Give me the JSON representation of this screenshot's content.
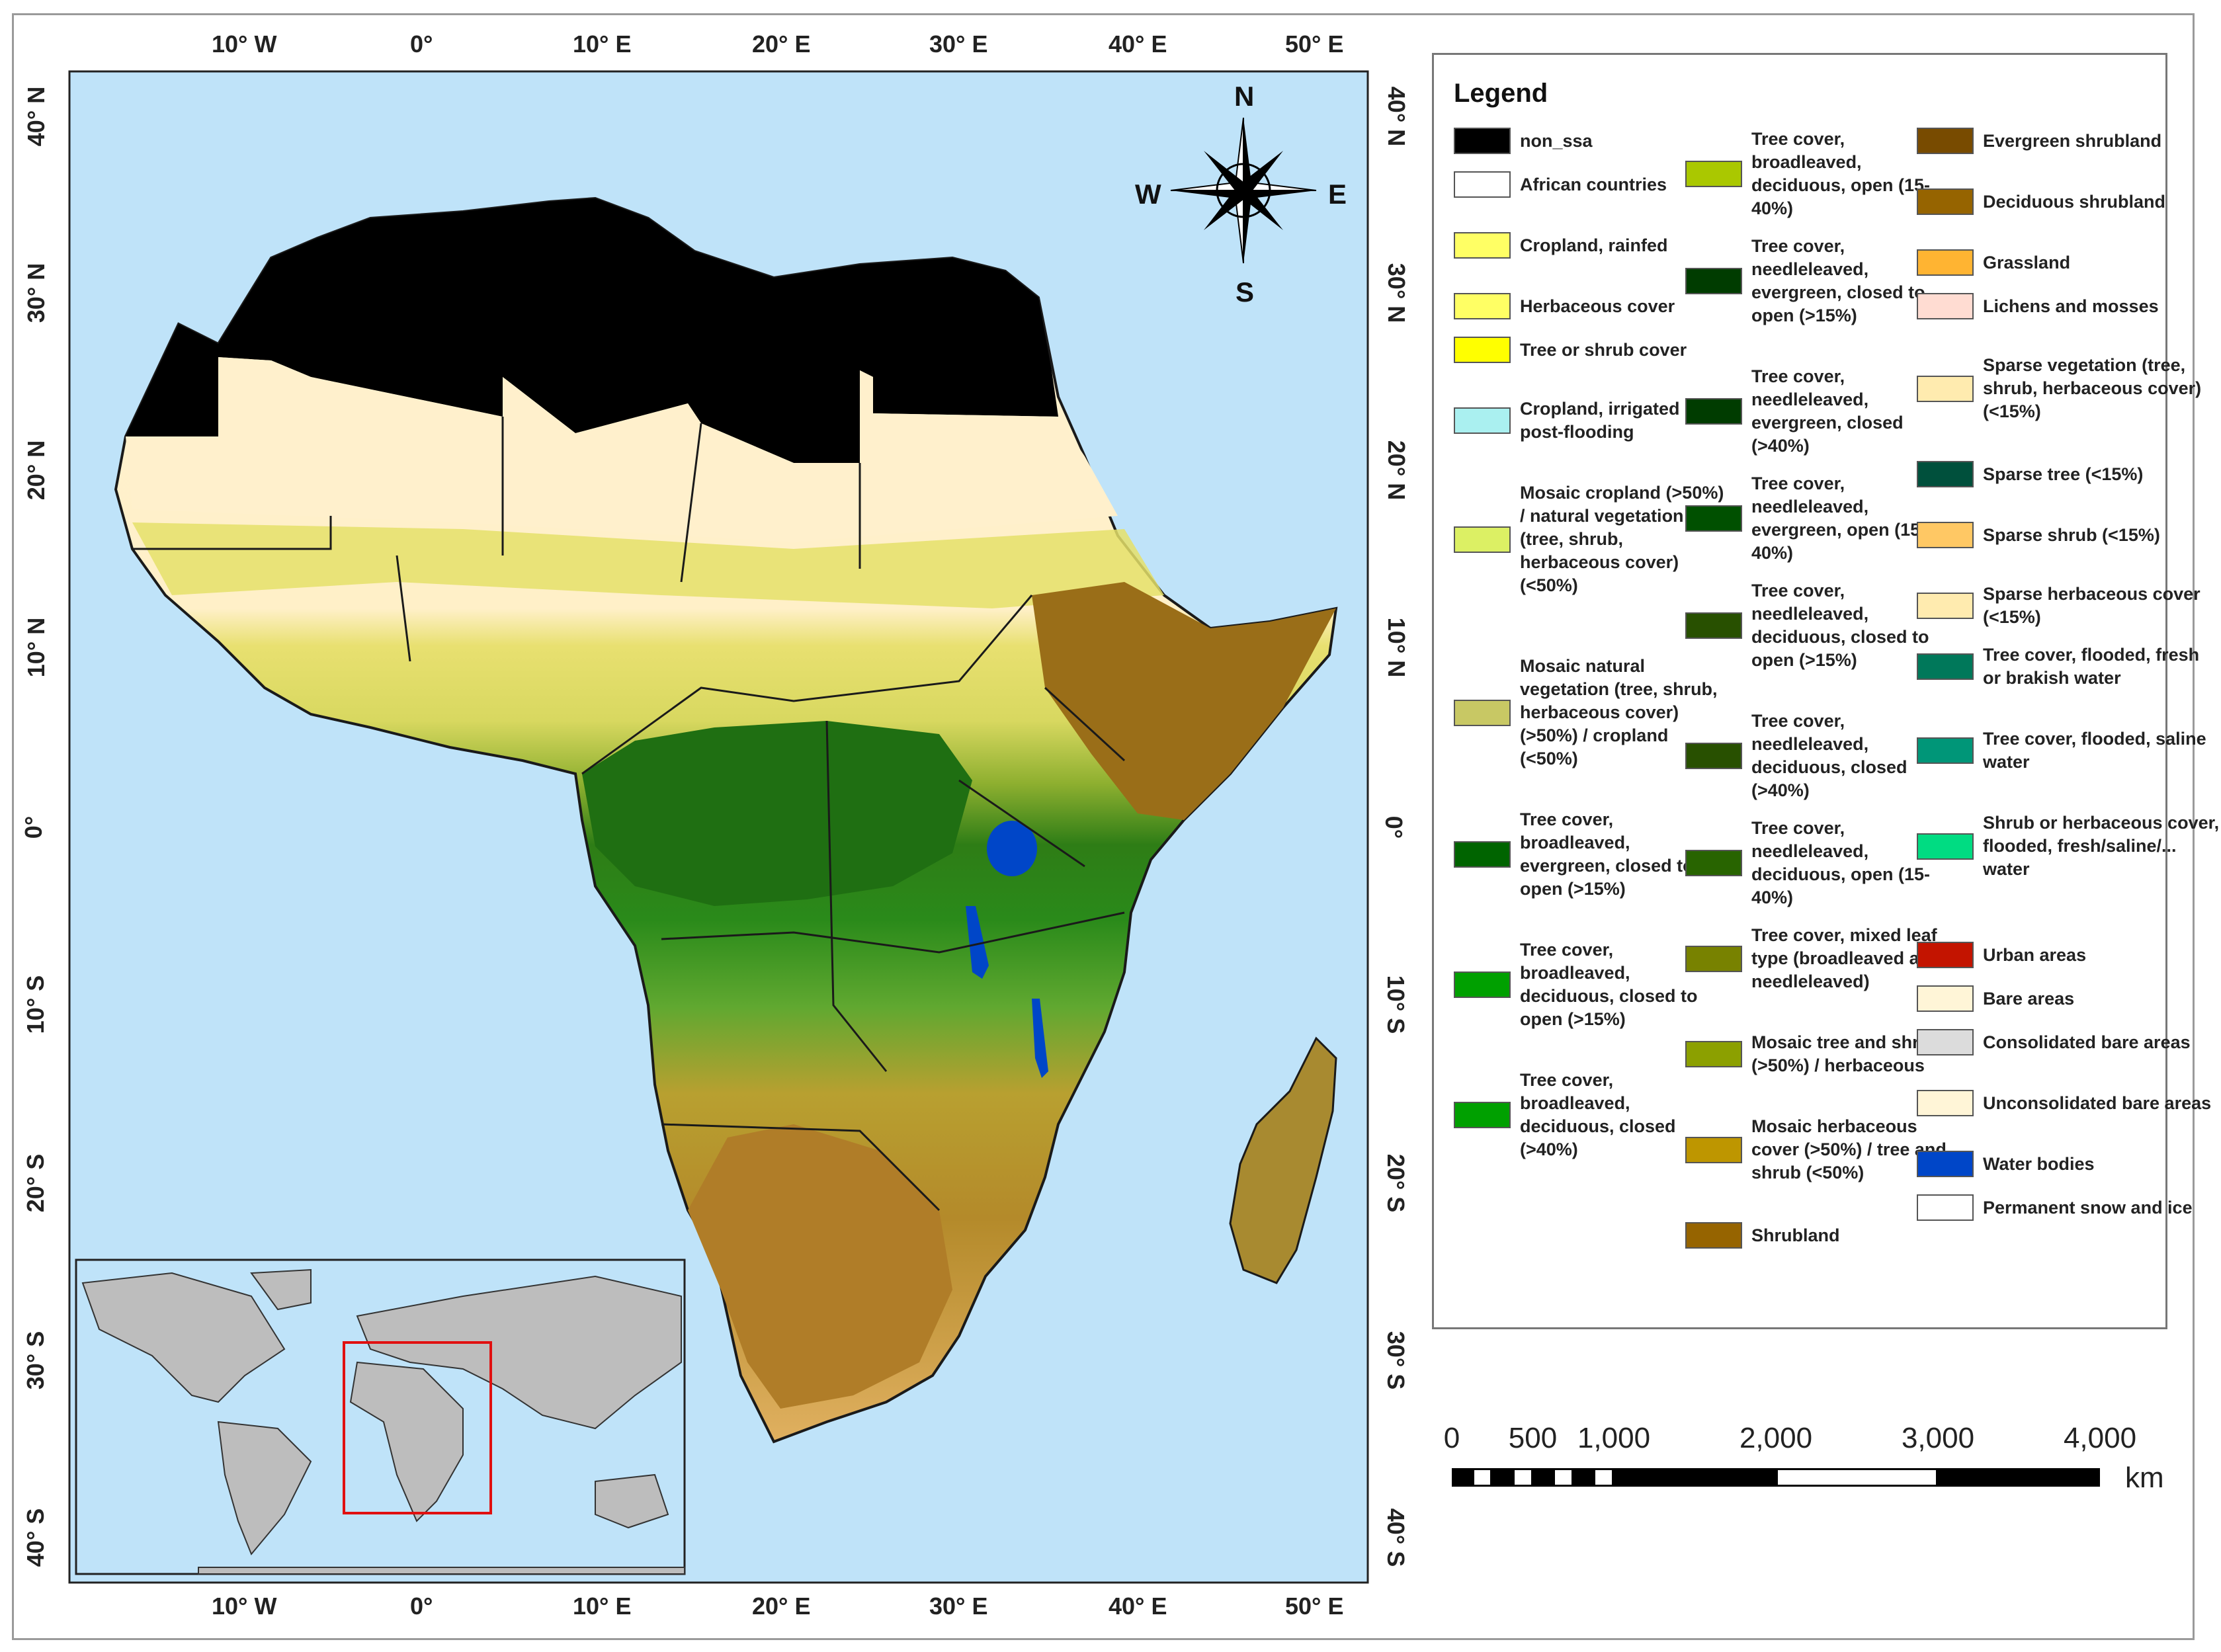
{
  "map": {
    "lon_labels": [
      "10° W",
      "0°",
      "10° E",
      "20° E",
      "30° E",
      "40° E",
      "50° E"
    ],
    "lat_labels": [
      "40° N",
      "30° N",
      "20° N",
      "10° N",
      "0°",
      "10° S",
      "20° S",
      "30° S",
      "40° S"
    ],
    "compass": {
      "n": "N",
      "s": "S",
      "e": "E",
      "w": "W"
    },
    "colors": {
      "ocean": "#bfe3f9",
      "non_ssa": "#000000",
      "border": "#1a1a1a",
      "inset_box": "#e01010",
      "inset_land": "#bdbdbd"
    }
  },
  "legend": {
    "title": "Legend",
    "items": [
      {
        "label": "non_ssa",
        "color": "#000000"
      },
      {
        "label": "African countries",
        "color": "#ffffff"
      },
      {
        "label": "Cropland, rainfed",
        "color": "#ffff64"
      },
      {
        "label": "Herbaceous cover",
        "color": "#ffff64"
      },
      {
        "label": "Tree or shrub cover",
        "color": "#ffff00"
      },
      {
        "label": "Cropland, irrigated or post-flooding",
        "color": "#aaf0f0"
      },
      {
        "label": "Mosaic cropland (>50%) / natural vegetation (tree, shrub, herbaceous cover) (<50%)",
        "color": "#dcf064"
      },
      {
        "label": "Mosaic natural vegetation (tree, shrub, herbaceous cover) (>50%) / cropland (<50%)",
        "color": "#c8c864"
      },
      {
        "label": "Tree cover, broadleaved, evergreen, closed to open (>15%)",
        "color": "#006400"
      },
      {
        "label": "Tree cover, broadleaved, deciduous, closed to open (>15%)",
        "color": "#00a000"
      },
      {
        "label": "Tree cover, broadleaved, deciduous, closed (>40%)",
        "color": "#00a000"
      },
      {
        "label": "Tree cover, broadleaved, deciduous, open (15-40%)",
        "color": "#aac800"
      },
      {
        "label": "Tree cover, needleleaved, evergreen, closed to open (>15%)",
        "color": "#003c00"
      },
      {
        "label": "Tree cover, needleleaved, evergreen, closed (>40%)",
        "color": "#003c00"
      },
      {
        "label": "Tree cover, needleleaved, evergreen, open (15-40%)",
        "color": "#005000"
      },
      {
        "label": "Tree cover, needleleaved, deciduous, closed to open (>15%)",
        "color": "#285000"
      },
      {
        "label": "Tree cover, needleleaved, deciduous, closed (>40%)",
        "color": "#285000"
      },
      {
        "label": "Tree cover, needleleaved, deciduous, open (15-40%)",
        "color": "#286400"
      },
      {
        "label": "Tree cover, mixed leaf type (broadleaved and needleleaved)",
        "color": "#788200"
      },
      {
        "label": "Mosaic tree and shrub (>50%) / herbaceous",
        "color": "#8ca000"
      },
      {
        "label": "Mosaic herbaceous cover (>50%) / tree and shrub (<50%)",
        "color": "#be9600"
      },
      {
        "label": "Shrubland",
        "color": "#966400"
      },
      {
        "label": "Evergreen shrubland",
        "color": "#784b00"
      },
      {
        "label": "Deciduous shrubland",
        "color": "#966400"
      },
      {
        "label": "Grassland",
        "color": "#ffb432"
      },
      {
        "label": "Lichens and mosses",
        "color": "#ffdcd2"
      },
      {
        "label": "Sparse vegetation (tree, shrub, herbaceous cover) (<15%)",
        "color": "#ffebaf"
      },
      {
        "label": "Sparse tree (<15%)",
        "color": "#00503c"
      },
      {
        "label": "Sparse shrub (<15%)",
        "color": "#ffc864"
      },
      {
        "label": "Sparse herbaceous cover (<15%)",
        "color": "#ffebaf"
      },
      {
        "label": "Tree cover, flooded, fresh or brakish water",
        "color": "#00785a"
      },
      {
        "label": "Tree cover, flooded, saline water",
        "color": "#009678"
      },
      {
        "label": "Shrub or herbaceous cover, flooded, fresh/saline/... water",
        "color": "#00dc82"
      },
      {
        "label": "Urban areas",
        "color": "#c31400"
      },
      {
        "label": "Bare areas",
        "color": "#fff5d7"
      },
      {
        "label": "Consolidated bare areas",
        "color": "#dcdcdc"
      },
      {
        "label": "Unconsolidated bare areas",
        "color": "#fff5d7"
      },
      {
        "label": "Water bodies",
        "color": "#0046c8"
      },
      {
        "label": "Permanent snow and ice",
        "color": "#ffffff"
      }
    ]
  },
  "scale_bar": {
    "labels": [
      "0",
      "500",
      "1,000",
      "2,000",
      "3,000",
      "4,000"
    ],
    "km_values": [
      0,
      500,
      1000,
      2000,
      3000,
      4000
    ],
    "unit": "km"
  }
}
